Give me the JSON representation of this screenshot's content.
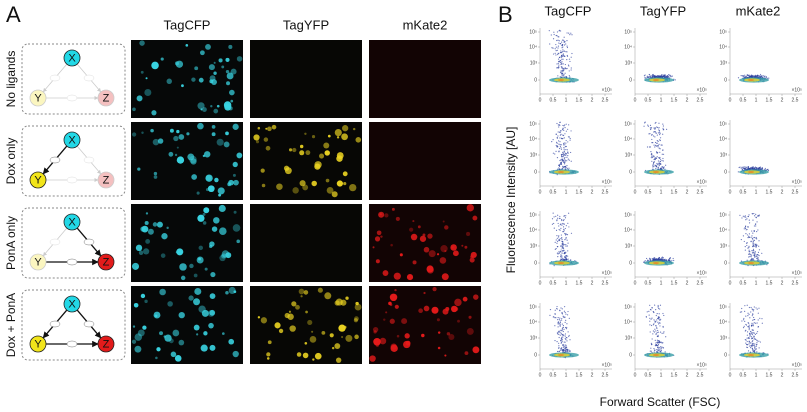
{
  "panel_a": {
    "label": "A",
    "columns": [
      "TagCFP",
      "TagYFP",
      "mKate2"
    ],
    "rows": [
      {
        "condition": "No ligands",
        "nodes": [
          "X",
          "Y",
          "Z"
        ]
      },
      {
        "condition": "Dox only",
        "nodes": [
          "X",
          "Y",
          "Z"
        ]
      },
      {
        "condition": "PonA only",
        "nodes": [
          "X",
          "Y",
          "Z"
        ]
      },
      {
        "condition": "Dox + PonA",
        "nodes": [
          "X",
          "Y",
          "Z"
        ]
      }
    ]
  },
  "panel_b": {
    "label": "B",
    "columns": [
      "TagCFP",
      "TagYFP",
      "mKate2"
    ],
    "x_axis_label": "Forward Scatter (FSC)",
    "y_axis_label": "Fluorescence Intensity [AU]",
    "x_ticks": [
      "0",
      "0.5",
      "1",
      "1.5",
      "2",
      "2.5"
    ],
    "x_multiplier": "×10⁵",
    "y_ticks": [
      "0",
      "10³",
      "10⁴",
      "10⁵"
    ]
  }
}
